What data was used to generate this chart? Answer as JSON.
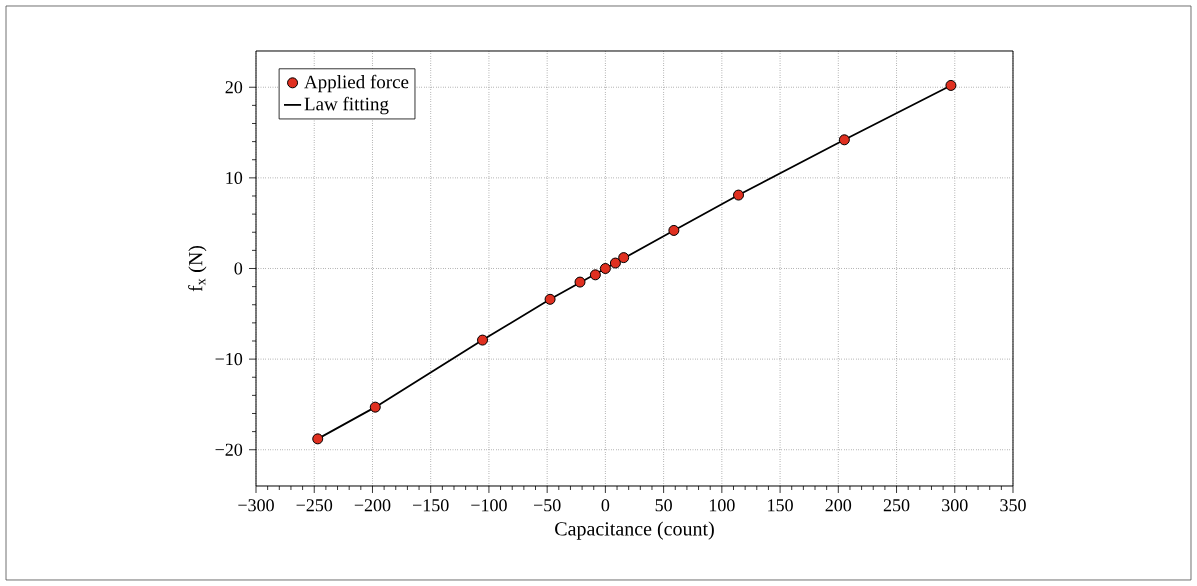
{
  "chart_data": {
    "type": "scatter",
    "xlabel": "Capacitance (count)",
    "ylabel": "f$_{x}$ (N)",
    "series": [
      {
        "name": "Applied force",
        "color": "#e03020",
        "marker": "circle",
        "x": [
          -247,
          -197.6,
          -105.5,
          -47.5,
          -21.8,
          -8.6,
          0,
          8.6,
          15.7,
          58.8,
          114.3,
          205.2,
          296.7
        ],
        "values": [
          -18.8,
          -15.3,
          -7.9,
          -3.4,
          -1.5,
          -0.7,
          0,
          0.6,
          1.2,
          4.2,
          8.1,
          14.2,
          20.2
        ]
      },
      {
        "name": "Law fitting",
        "type": "line",
        "color": "#000000",
        "marker": "none",
        "line_style": "solid",
        "x": [
          -247,
          -197.6,
          -105.5,
          -47.5,
          0,
          58.8,
          114.3,
          205.2,
          296.7
        ],
        "values": [
          -18.8,
          -15.3,
          -7.9,
          -3.4,
          0,
          4.2,
          8.1,
          14.2,
          20.2
        ]
      }
    ],
    "xlim": [
      -300,
      350
    ],
    "ylim": [
      -24,
      24
    ],
    "xticks": [
      {
        "value": -300,
        "label": "−300"
      },
      {
        "value": -250,
        "label": "−250"
      },
      {
        "value": -200,
        "label": "−200"
      },
      {
        "value": -150,
        "label": "−150"
      },
      {
        "value": -100,
        "label": "−100"
      },
      {
        "value": -50,
        "label": "−50"
      },
      0,
      50,
      100,
      150,
      200,
      250,
      300,
      350
    ],
    "yticks": [
      {
        "value": -20,
        "label": "−20"
      },
      {
        "value": -10,
        "label": "−10"
      },
      0,
      10,
      20
    ],
    "grid": true,
    "legend": "top left"
  }
}
